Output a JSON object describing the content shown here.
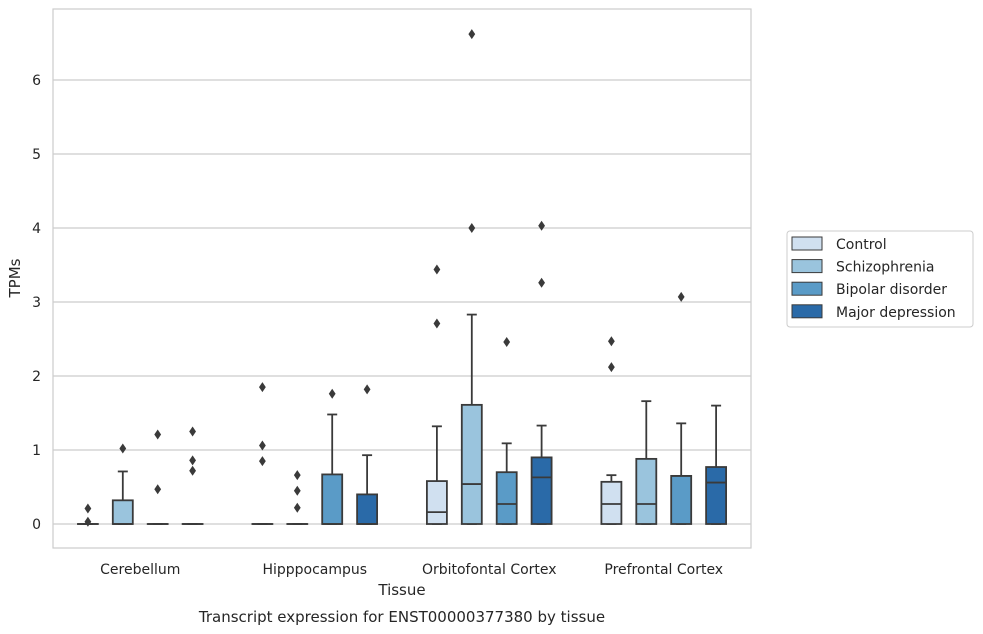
{
  "chart_data": {
    "type": "box",
    "caption": "Transcript expression for ENST00000377380 by tissue",
    "xlabel": "Tissue",
    "ylabel": "TPMs",
    "ylim": [
      -0.32,
      7.0
    ],
    "yticks": [
      0,
      1,
      2,
      3,
      4,
      5,
      6
    ],
    "grid": true,
    "legend_position": "right",
    "categories": [
      "Cerebellum",
      "Hipppocampus",
      "Orbitofontal Cortex",
      "Prefrontal Cortex"
    ],
    "series": [
      {
        "name": "Control",
        "color": "#d0e0f0",
        "boxes": [
          {
            "q1": 0,
            "median": 0,
            "q3": 0,
            "whisker_low": 0,
            "whisker_high": 0,
            "outliers": [
              0.21,
              0.03
            ]
          },
          {
            "q1": 0,
            "median": 0,
            "q3": 0,
            "whisker_low": 0,
            "whisker_high": 0,
            "outliers": [
              1.85,
              1.06,
              0.85
            ]
          },
          {
            "q1": 0,
            "median": 0.16,
            "q3": 0.58,
            "whisker_low": 0,
            "whisker_high": 1.32,
            "outliers": [
              3.44,
              2.71
            ]
          },
          {
            "q1": 0,
            "median": 0.27,
            "q3": 0.57,
            "whisker_low": 0,
            "whisker_high": 0.66,
            "outliers": [
              2.47,
              2.12
            ]
          }
        ]
      },
      {
        "name": "Schizophrenia",
        "color": "#9ac4dd",
        "boxes": [
          {
            "q1": 0,
            "median": 0,
            "q3": 0.32,
            "whisker_low": 0,
            "whisker_high": 0.71,
            "outliers": [
              1.02
            ]
          },
          {
            "q1": 0,
            "median": 0,
            "q3": 0,
            "whisker_low": 0,
            "whisker_high": 0,
            "outliers": [
              0.66,
              0.45,
              0.22
            ]
          },
          {
            "q1": 0,
            "median": 0.54,
            "q3": 1.61,
            "whisker_low": 0,
            "whisker_high": 2.83,
            "outliers": [
              6.62,
              4.0
            ]
          },
          {
            "q1": 0,
            "median": 0.27,
            "q3": 0.88,
            "whisker_low": 0,
            "whisker_high": 1.66,
            "outliers": []
          }
        ]
      },
      {
        "name": "Bipolar disorder",
        "color": "#5a9bc7",
        "boxes": [
          {
            "q1": 0,
            "median": 0,
            "q3": 0,
            "whisker_low": 0,
            "whisker_high": 0,
            "outliers": [
              1.21,
              0.47
            ]
          },
          {
            "q1": 0,
            "median": 0,
            "q3": 0.67,
            "whisker_low": 0,
            "whisker_high": 1.48,
            "outliers": [
              1.76
            ]
          },
          {
            "q1": 0,
            "median": 0.27,
            "q3": 0.7,
            "whisker_low": 0,
            "whisker_high": 1.09,
            "outliers": [
              2.46
            ]
          },
          {
            "q1": 0,
            "median": 0.65,
            "q3": 0.65,
            "whisker_low": 0,
            "whisker_high": 1.36,
            "outliers": [
              3.07
            ]
          }
        ]
      },
      {
        "name": "Major depression",
        "color": "#2a6aa8",
        "boxes": [
          {
            "q1": 0,
            "median": 0,
            "q3": 0,
            "whisker_low": 0,
            "whisker_high": 0,
            "outliers": [
              1.25,
              0.86,
              0.72
            ]
          },
          {
            "q1": 0,
            "median": 0,
            "q3": 0.4,
            "whisker_low": 0,
            "whisker_high": 0.93,
            "outliers": [
              1.82
            ]
          },
          {
            "q1": 0,
            "median": 0.63,
            "q3": 0.9,
            "whisker_low": 0,
            "whisker_high": 1.33,
            "outliers": [
              4.03,
              3.26
            ]
          },
          {
            "q1": 0,
            "median": 0.56,
            "q3": 0.77,
            "whisker_low": 0,
            "whisker_high": 1.6,
            "outliers": []
          }
        ]
      }
    ]
  }
}
